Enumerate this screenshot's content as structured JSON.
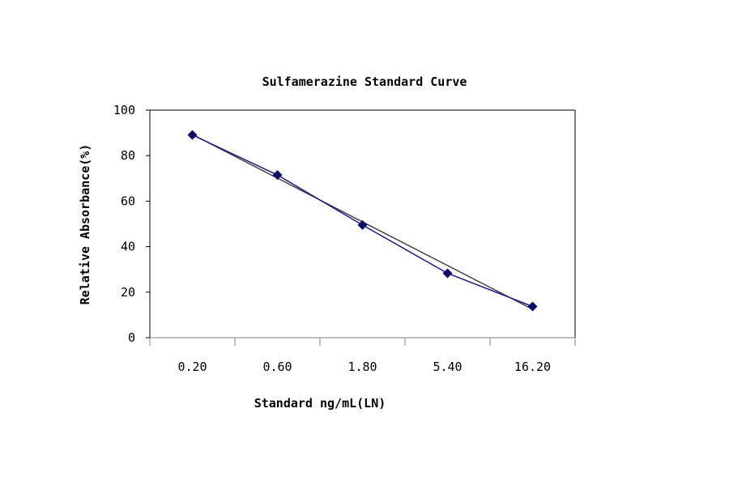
{
  "chart_data": {
    "type": "line",
    "title": "Sulfamerazine Standard Curve",
    "xlabel": "Standard ng/mL(LN)",
    "ylabel": "Relative Absorbance(%)",
    "categories": [
      "0.20",
      "0.60",
      "1.80",
      "5.40",
      "16.20"
    ],
    "series": [
      {
        "values": [
          89.1,
          71.5,
          49.5,
          28.3,
          13.7
        ],
        "color": "#1f1a8c",
        "marker": "diamond"
      }
    ],
    "trendline": {
      "type": "linear",
      "values": [
        89.3,
        12.5
      ],
      "color": "#404040"
    },
    "ylim": [
      0,
      100
    ],
    "yticks": [
      "0",
      "20",
      "40",
      "60",
      "80",
      "100"
    ],
    "grid": false,
    "legend": "none"
  }
}
